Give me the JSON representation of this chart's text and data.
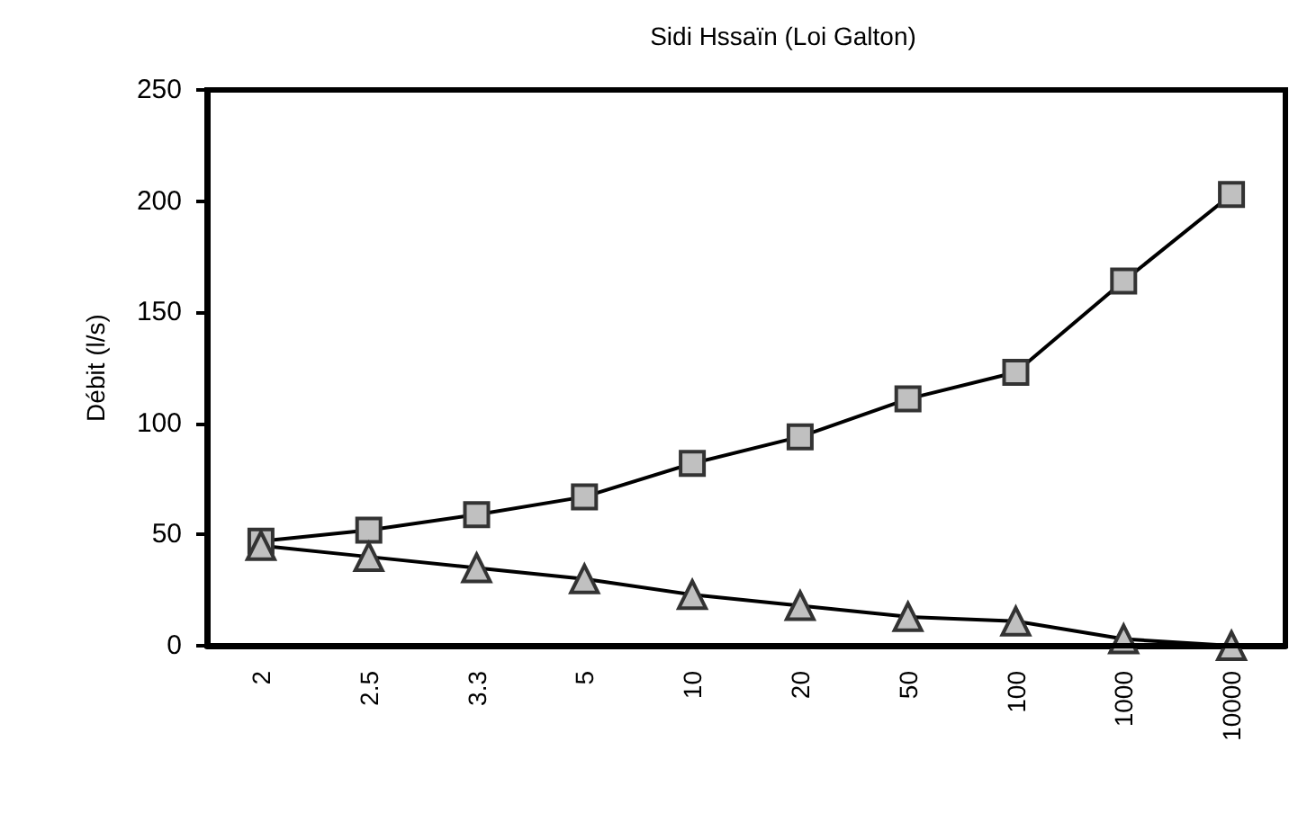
{
  "chart_data": {
    "type": "line",
    "title": "Sidi Hssaïn (Loi Galton)",
    "ylabel": "Débit (l/s)",
    "categories": [
      "2",
      "2.5",
      "3.3",
      "5",
      "10",
      "20",
      "50",
      "100",
      "1000",
      "10000"
    ],
    "series": [
      {
        "color": "#c0c0c0",
        "marker": "square",
        "values": [
          47,
          52,
          59,
          67,
          82,
          94,
          111,
          123,
          164,
          203
        ]
      },
      {
        "color": "#c0c0c0",
        "marker": "triangle",
        "values": [
          45,
          40,
          35,
          30,
          23,
          18,
          13,
          11,
          3,
          0
        ]
      }
    ],
    "ylim": [
      0,
      250
    ],
    "yticks": [
      0,
      50,
      100,
      150,
      200,
      250
    ],
    "grid": false,
    "line_style": "solid"
  }
}
